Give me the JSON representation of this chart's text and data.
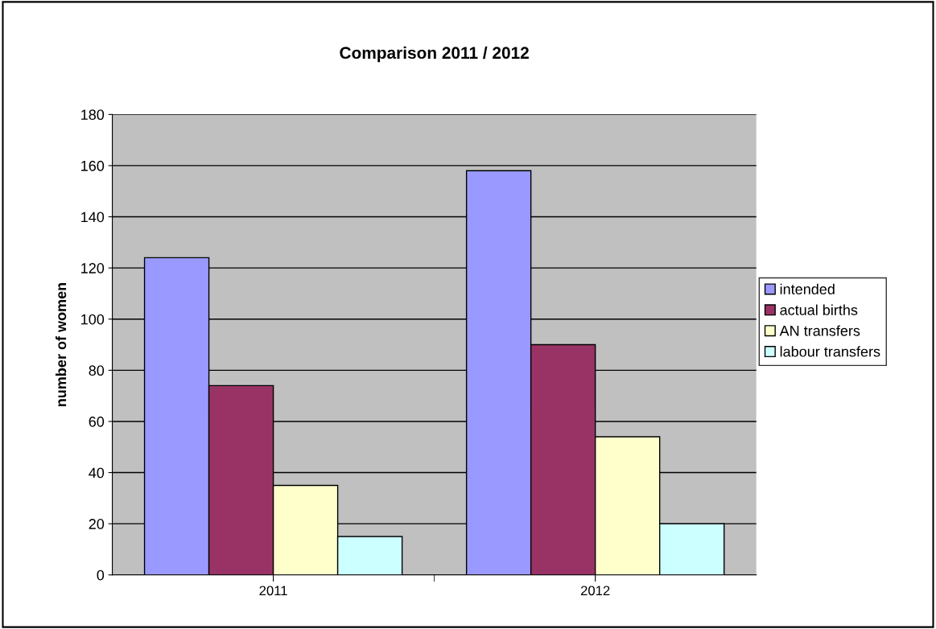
{
  "chart_data": {
    "type": "bar",
    "title": "Comparison 2011 / 2012",
    "ylabel": "number of women",
    "categories": [
      "2011",
      "2012"
    ],
    "series": [
      {
        "name": "intended",
        "color": "#9999ff",
        "values": [
          124,
          158
        ]
      },
      {
        "name": "actual births",
        "color": "#993366",
        "values": [
          74,
          90
        ]
      },
      {
        "name": "AN transfers",
        "color": "#ffffcc",
        "values": [
          35,
          54
        ]
      },
      {
        "name": "labour transfers",
        "color": "#ccffff",
        "values": [
          15,
          20
        ]
      }
    ],
    "ylim": [
      0,
      180
    ],
    "yticks": [
      0,
      20,
      40,
      60,
      80,
      100,
      120,
      140,
      160,
      180
    ],
    "grid": "y",
    "legend": "right"
  }
}
